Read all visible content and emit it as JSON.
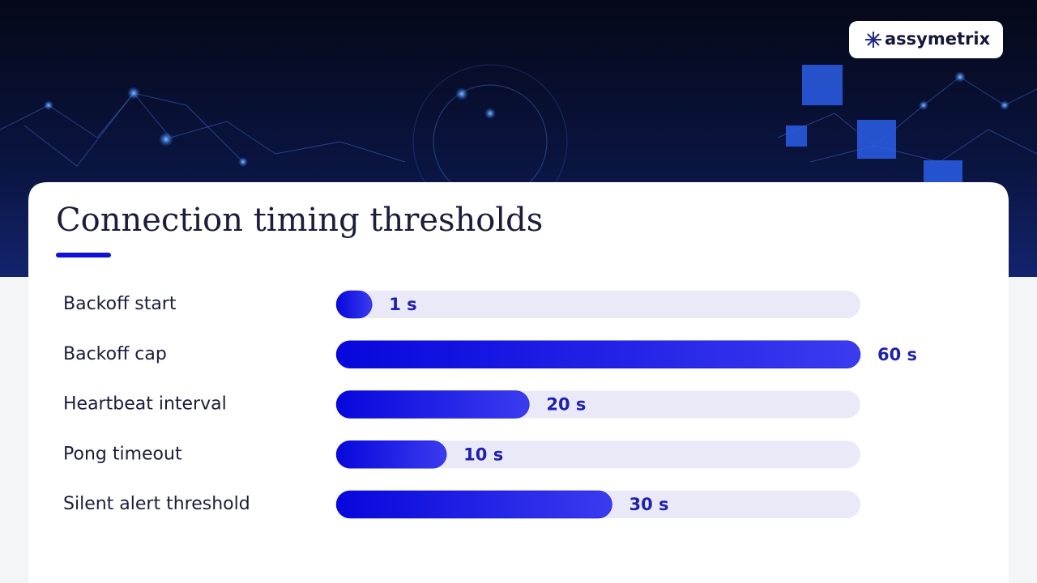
{
  "brand": "assymetrix",
  "chart_data": {
    "type": "bar",
    "orientation": "horizontal",
    "title": "Connection timing thresholds",
    "categories": [
      "Backoff start",
      "Backoff cap",
      "Heartbeat interval",
      "Pong timeout",
      "Silent alert threshold"
    ],
    "values": [
      1,
      60,
      20,
      10,
      30
    ],
    "value_labels": [
      "1 s",
      "60 s",
      "20 s",
      "10 s",
      "30 s"
    ],
    "color": "#0b0be0",
    "xlim": [
      0,
      60
    ]
  }
}
